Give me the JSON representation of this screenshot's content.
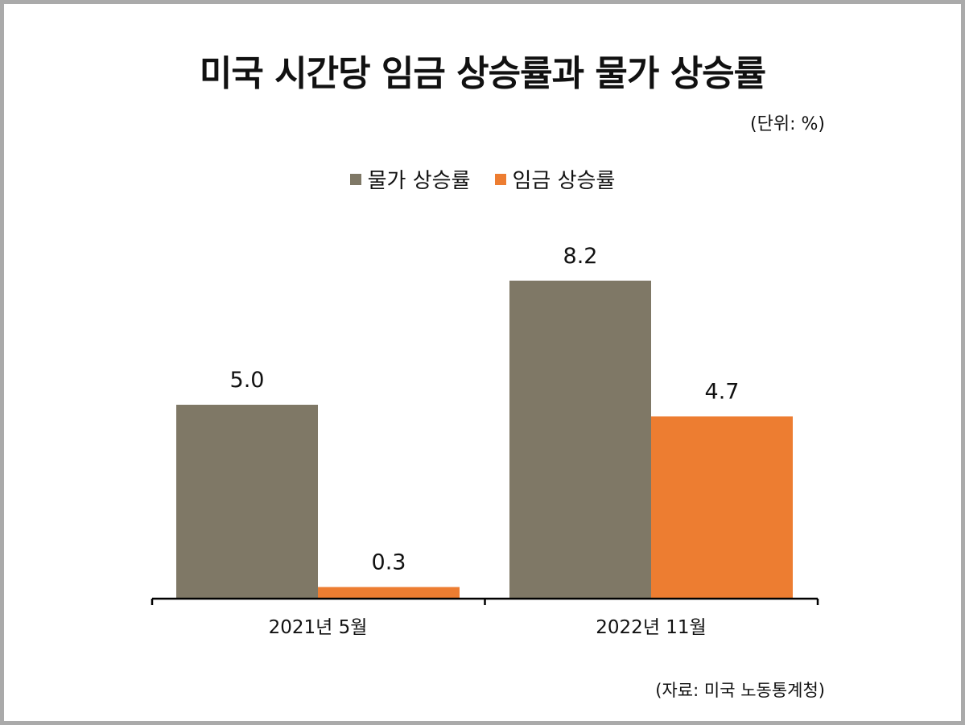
{
  "title": "미국 시간당 임금 상승률과 물가 상승률",
  "unit": "(단위: %)",
  "source": "(자료: 미국 노동통계청)",
  "chart_data": {
    "type": "bar",
    "title": "미국 시간당 임금 상승률과 물가 상승률",
    "categories": [
      "2021년 5월",
      "2022년 11월"
    ],
    "series": [
      {
        "name": "물가 상승률",
        "values": [
          5.0,
          8.2
        ],
        "color": "#7f7866"
      },
      {
        "name": "임금 상승률",
        "values": [
          0.3,
          4.7
        ],
        "color": "#ed7d31"
      }
    ],
    "data_labels": [
      [
        "5.0",
        "8.2"
      ],
      [
        "0.3",
        "4.7"
      ]
    ],
    "ylim": [
      0,
      9
    ],
    "grid": false,
    "legend": "top-center",
    "xlabel": "",
    "ylabel": ""
  }
}
